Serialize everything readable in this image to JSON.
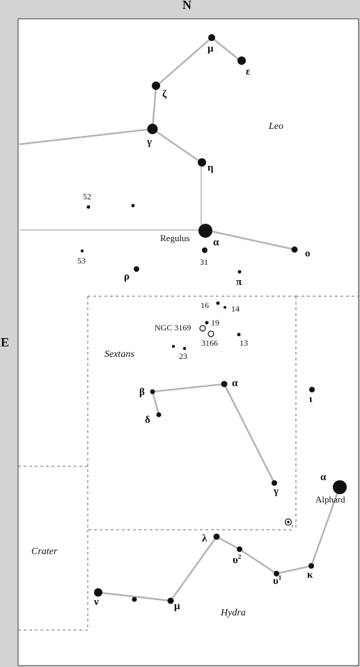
{
  "compass": {
    "north": "N",
    "east": "E"
  },
  "constellations": {
    "leo": "Leo",
    "sextans": "Sextans",
    "crater": "Crater",
    "hydra": "Hydra"
  },
  "stars": {
    "leo_mu": "μ",
    "leo_epsilon": "ε",
    "leo_zeta": "ζ",
    "leo_gamma": "γ",
    "leo_eta": "η",
    "leo_alpha": "α",
    "regulus": "Regulus",
    "leo_31": "31",
    "leo_omicron": "ο",
    "leo_52": "52",
    "leo_53": "53",
    "leo_rho": "ρ",
    "leo_pi": "π",
    "sex_16": "16",
    "sex_14": "14",
    "sex_19": "19",
    "ngc3169": "NGC 3169",
    "ngc3166": "3166",
    "sex_13": "13",
    "sex_23": "23",
    "sex_beta": "β",
    "sex_alpha": "α",
    "sex_delta": "δ",
    "sex_gamma": "γ",
    "hya_iota": "ι",
    "hya_alpha": "α",
    "alphard": "Alphard",
    "hya_lambda": "λ",
    "hya_upsilon2": "υ",
    "hya_upsilon2_sup": "2",
    "hya_upsilon1": "υ",
    "hya_upsilon1_sup": "1",
    "hya_kappa": "κ",
    "hya_nu": "ν",
    "hya_mu": "μ"
  }
}
